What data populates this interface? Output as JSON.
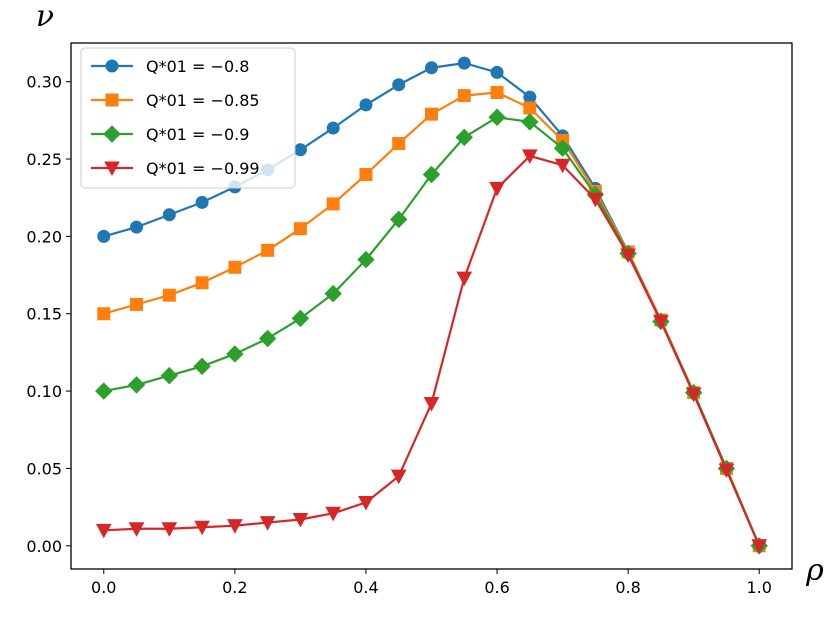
{
  "chart_data": {
    "type": "line",
    "xlabel": "ρ",
    "ylabel": "ν",
    "xlim": [
      -0.05,
      1.05
    ],
    "ylim": [
      -0.015,
      0.325
    ],
    "x_ticks": [
      "0.0",
      "0.2",
      "0.4",
      "0.6",
      "0.8",
      "1.0"
    ],
    "y_ticks": [
      "0.00",
      "0.05",
      "0.10",
      "0.15",
      "0.20",
      "0.25",
      "0.30"
    ],
    "grid": false,
    "legend_position": "top-left",
    "x": [
      0.0,
      0.05,
      0.1,
      0.15,
      0.2,
      0.25,
      0.3,
      0.35,
      0.4,
      0.45,
      0.5,
      0.55,
      0.6,
      0.65,
      0.7,
      0.75,
      0.8,
      0.85,
      0.9,
      0.95,
      1.0
    ],
    "series": [
      {
        "name": "Q*01 = −0.8",
        "color": "#1f77b4",
        "marker": "circle",
        "values": [
          0.2,
          0.206,
          0.214,
          0.222,
          0.232,
          0.243,
          0.256,
          0.27,
          0.285,
          0.298,
          0.309,
          0.312,
          0.306,
          0.29,
          0.265,
          0.231,
          0.19,
          0.146,
          0.099,
          0.05,
          0.0
        ]
      },
      {
        "name": "Q*01 = −0.85",
        "color": "#ff7f0e",
        "marker": "square",
        "values": [
          0.15,
          0.156,
          0.162,
          0.17,
          0.18,
          0.191,
          0.205,
          0.221,
          0.24,
          0.26,
          0.279,
          0.291,
          0.293,
          0.283,
          0.262,
          0.229,
          0.19,
          0.146,
          0.099,
          0.05,
          0.0
        ]
      },
      {
        "name": "Q*01 = −0.9",
        "color": "#2ca02c",
        "marker": "diamond",
        "values": [
          0.1,
          0.104,
          0.11,
          0.116,
          0.124,
          0.134,
          0.147,
          0.163,
          0.185,
          0.211,
          0.24,
          0.264,
          0.277,
          0.274,
          0.257,
          0.227,
          0.189,
          0.145,
          0.099,
          0.05,
          0.0
        ]
      },
      {
        "name": "Q*01 = −0.99",
        "color": "#d62728",
        "marker": "triangle-down",
        "values": [
          0.01,
          0.011,
          0.011,
          0.012,
          0.013,
          0.015,
          0.017,
          0.021,
          0.028,
          0.045,
          0.092,
          0.173,
          0.231,
          0.252,
          0.246,
          0.224,
          0.188,
          0.145,
          0.098,
          0.049,
          0.0
        ]
      }
    ]
  }
}
